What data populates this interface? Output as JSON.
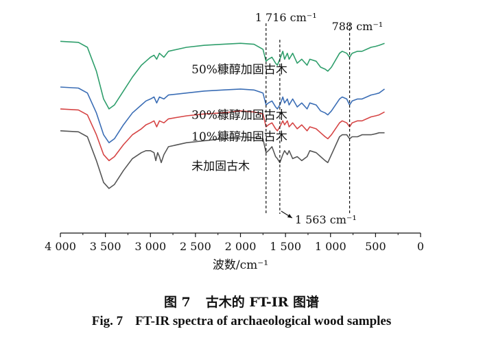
{
  "chart_data": {
    "type": "line",
    "title": "",
    "xlabel": "波数/cm⁻¹",
    "ylabel": "",
    "xlim": [
      4000,
      0
    ],
    "x_reversed": true,
    "x_ticks": [
      {
        "value": 4000,
        "label": "4 000"
      },
      {
        "value": 3500,
        "label": "3 500"
      },
      {
        "value": 3000,
        "label": "3 000"
      },
      {
        "value": 2500,
        "label": "2 500"
      },
      {
        "value": 2000,
        "label": "2 000"
      },
      {
        "value": 1500,
        "label": "1 500"
      },
      {
        "value": 1000,
        "label": "1 000"
      },
      {
        "value": 500,
        "label": "500"
      },
      {
        "value": 0,
        "label": "0"
      }
    ],
    "grid": false,
    "legend": "inline labels",
    "ylim": [
      0,
      100
    ],
    "reference_lines": [
      {
        "x": 1716,
        "label": "1 716 cm⁻¹"
      },
      {
        "x": 1563,
        "label": "1 563 cm⁻¹"
      },
      {
        "x": 788,
        "label": "788 cm⁻¹"
      }
    ],
    "series": [
      {
        "name": "50%糠醇加固古木",
        "color": "#2e9e6b",
        "label_x": 2620,
        "points": [
          [
            4000,
            93
          ],
          [
            3800,
            92.5
          ],
          [
            3700,
            90
          ],
          [
            3600,
            78
          ],
          [
            3520,
            64
          ],
          [
            3460,
            59
          ],
          [
            3400,
            61
          ],
          [
            3300,
            68
          ],
          [
            3200,
            75
          ],
          [
            3100,
            81
          ],
          [
            3050,
            83
          ],
          [
            3000,
            85
          ],
          [
            2960,
            86
          ],
          [
            2930,
            84
          ],
          [
            2900,
            87
          ],
          [
            2850,
            85
          ],
          [
            2800,
            88
          ],
          [
            2600,
            90
          ],
          [
            2400,
            91
          ],
          [
            2200,
            91.5
          ],
          [
            2000,
            92
          ],
          [
            1850,
            91.5
          ],
          [
            1750,
            89
          ],
          [
            1716,
            83
          ],
          [
            1690,
            84
          ],
          [
            1650,
            85
          ],
          [
            1610,
            82
          ],
          [
            1590,
            81
          ],
          [
            1563,
            84
          ],
          [
            1530,
            88
          ],
          [
            1510,
            84
          ],
          [
            1480,
            87
          ],
          [
            1460,
            84
          ],
          [
            1420,
            87
          ],
          [
            1370,
            82
          ],
          [
            1320,
            84
          ],
          [
            1260,
            81
          ],
          [
            1230,
            84
          ],
          [
            1160,
            83
          ],
          [
            1110,
            80
          ],
          [
            1060,
            79
          ],
          [
            1030,
            78
          ],
          [
            990,
            80
          ],
          [
            900,
            87
          ],
          [
            870,
            88
          ],
          [
            820,
            87
          ],
          [
            788,
            85
          ],
          [
            760,
            87
          ],
          [
            700,
            88
          ],
          [
            650,
            88
          ],
          [
            600,
            89
          ],
          [
            550,
            90
          ],
          [
            500,
            90.5
          ],
          [
            460,
            91
          ],
          [
            400,
            92
          ]
        ]
      },
      {
        "name": "30%糠醇加固古木",
        "color": "#3a6db5",
        "label_x": 2620,
        "points": [
          [
            4000,
            70
          ],
          [
            3800,
            69.5
          ],
          [
            3700,
            67
          ],
          [
            3600,
            57
          ],
          [
            3520,
            46
          ],
          [
            3460,
            42
          ],
          [
            3400,
            44
          ],
          [
            3300,
            51
          ],
          [
            3200,
            57
          ],
          [
            3100,
            61
          ],
          [
            3050,
            63
          ],
          [
            3000,
            64
          ],
          [
            2960,
            65
          ],
          [
            2930,
            62
          ],
          [
            2900,
            65
          ],
          [
            2850,
            64
          ],
          [
            2800,
            66
          ],
          [
            2600,
            67
          ],
          [
            2400,
            68
          ],
          [
            2200,
            68.5
          ],
          [
            2000,
            69
          ],
          [
            1850,
            68.5
          ],
          [
            1750,
            67
          ],
          [
            1716,
            61
          ],
          [
            1690,
            62
          ],
          [
            1650,
            63
          ],
          [
            1610,
            60
          ],
          [
            1590,
            59
          ],
          [
            1563,
            61
          ],
          [
            1530,
            65
          ],
          [
            1510,
            62
          ],
          [
            1480,
            64
          ],
          [
            1460,
            61
          ],
          [
            1420,
            64
          ],
          [
            1370,
            60
          ],
          [
            1320,
            62
          ],
          [
            1260,
            59
          ],
          [
            1230,
            62
          ],
          [
            1160,
            61
          ],
          [
            1110,
            58
          ],
          [
            1060,
            57
          ],
          [
            1030,
            56
          ],
          [
            990,
            58
          ],
          [
            900,
            64
          ],
          [
            870,
            65
          ],
          [
            820,
            64
          ],
          [
            788,
            61
          ],
          [
            760,
            63
          ],
          [
            700,
            64
          ],
          [
            650,
            64
          ],
          [
            600,
            65
          ],
          [
            550,
            66
          ],
          [
            500,
            66.5
          ],
          [
            460,
            67
          ],
          [
            400,
            69
          ]
        ]
      },
      {
        "name": "10%糠醇加固古木",
        "color": "#d64444",
        "label_x": 2620,
        "points": [
          [
            4000,
            59
          ],
          [
            3800,
            58.5
          ],
          [
            3700,
            56
          ],
          [
            3600,
            46
          ],
          [
            3520,
            36
          ],
          [
            3460,
            33
          ],
          [
            3400,
            35
          ],
          [
            3300,
            41
          ],
          [
            3200,
            46
          ],
          [
            3100,
            49
          ],
          [
            3050,
            51
          ],
          [
            3000,
            52
          ],
          [
            2960,
            53
          ],
          [
            2930,
            50
          ],
          [
            2900,
            53
          ],
          [
            2850,
            52
          ],
          [
            2800,
            54
          ],
          [
            2600,
            55.5
          ],
          [
            2400,
            56.5
          ],
          [
            2200,
            57
          ],
          [
            2000,
            58
          ],
          [
            1850,
            57.5
          ],
          [
            1750,
            56.5
          ],
          [
            1716,
            50
          ],
          [
            1690,
            51
          ],
          [
            1650,
            52
          ],
          [
            1610,
            49
          ],
          [
            1590,
            48
          ],
          [
            1563,
            50
          ],
          [
            1530,
            53
          ],
          [
            1510,
            51
          ],
          [
            1480,
            53
          ],
          [
            1460,
            50
          ],
          [
            1420,
            52
          ],
          [
            1370,
            49
          ],
          [
            1320,
            51
          ],
          [
            1260,
            48
          ],
          [
            1230,
            50
          ],
          [
            1160,
            49
          ],
          [
            1110,
            47
          ],
          [
            1060,
            45
          ],
          [
            1030,
            44
          ],
          [
            990,
            46
          ],
          [
            900,
            52
          ],
          [
            870,
            53
          ],
          [
            820,
            52
          ],
          [
            788,
            50
          ],
          [
            760,
            52
          ],
          [
            700,
            53
          ],
          [
            650,
            53
          ],
          [
            600,
            54
          ],
          [
            550,
            55
          ],
          [
            500,
            55.5
          ],
          [
            460,
            56
          ],
          [
            400,
            57.5
          ]
        ]
      },
      {
        "name": "未加固古木",
        "color": "#555555",
        "label_x": 2620,
        "points": [
          [
            4000,
            48
          ],
          [
            3800,
            47.5
          ],
          [
            3700,
            45
          ],
          [
            3600,
            33
          ],
          [
            3520,
            22
          ],
          [
            3460,
            19
          ],
          [
            3400,
            21
          ],
          [
            3300,
            28
          ],
          [
            3200,
            34
          ],
          [
            3100,
            37
          ],
          [
            3050,
            38
          ],
          [
            3000,
            38
          ],
          [
            2960,
            37
          ],
          [
            2940,
            33
          ],
          [
            2920,
            37
          ],
          [
            2900,
            35
          ],
          [
            2880,
            32
          ],
          [
            2850,
            36
          ],
          [
            2800,
            40
          ],
          [
            2600,
            42
          ],
          [
            2400,
            43
          ],
          [
            2200,
            44
          ],
          [
            2000,
            45
          ],
          [
            1850,
            44.5
          ],
          [
            1750,
            44
          ],
          [
            1716,
            37
          ],
          [
            1690,
            38
          ],
          [
            1650,
            40
          ],
          [
            1610,
            35
          ],
          [
            1590,
            34
          ],
          [
            1563,
            32
          ],
          [
            1530,
            36
          ],
          [
            1510,
            38
          ],
          [
            1480,
            36
          ],
          [
            1460,
            38
          ],
          [
            1420,
            34
          ],
          [
            1370,
            35
          ],
          [
            1320,
            33
          ],
          [
            1260,
            35
          ],
          [
            1230,
            38
          ],
          [
            1160,
            37
          ],
          [
            1110,
            35
          ],
          [
            1060,
            33
          ],
          [
            1030,
            32
          ],
          [
            990,
            36
          ],
          [
            900,
            45
          ],
          [
            870,
            46
          ],
          [
            820,
            46
          ],
          [
            788,
            44
          ],
          [
            760,
            45
          ],
          [
            700,
            45
          ],
          [
            650,
            46
          ],
          [
            600,
            46
          ],
          [
            550,
            46
          ],
          [
            500,
            46.5
          ],
          [
            460,
            47
          ],
          [
            400,
            47
          ]
        ]
      }
    ]
  },
  "caption": {
    "cn_num": "图 7",
    "cn_text": "古木的 FT-IR 图谱",
    "en_num": "Fig.  7",
    "en_text": "FT-IR spectra of archaeological wood samples"
  }
}
